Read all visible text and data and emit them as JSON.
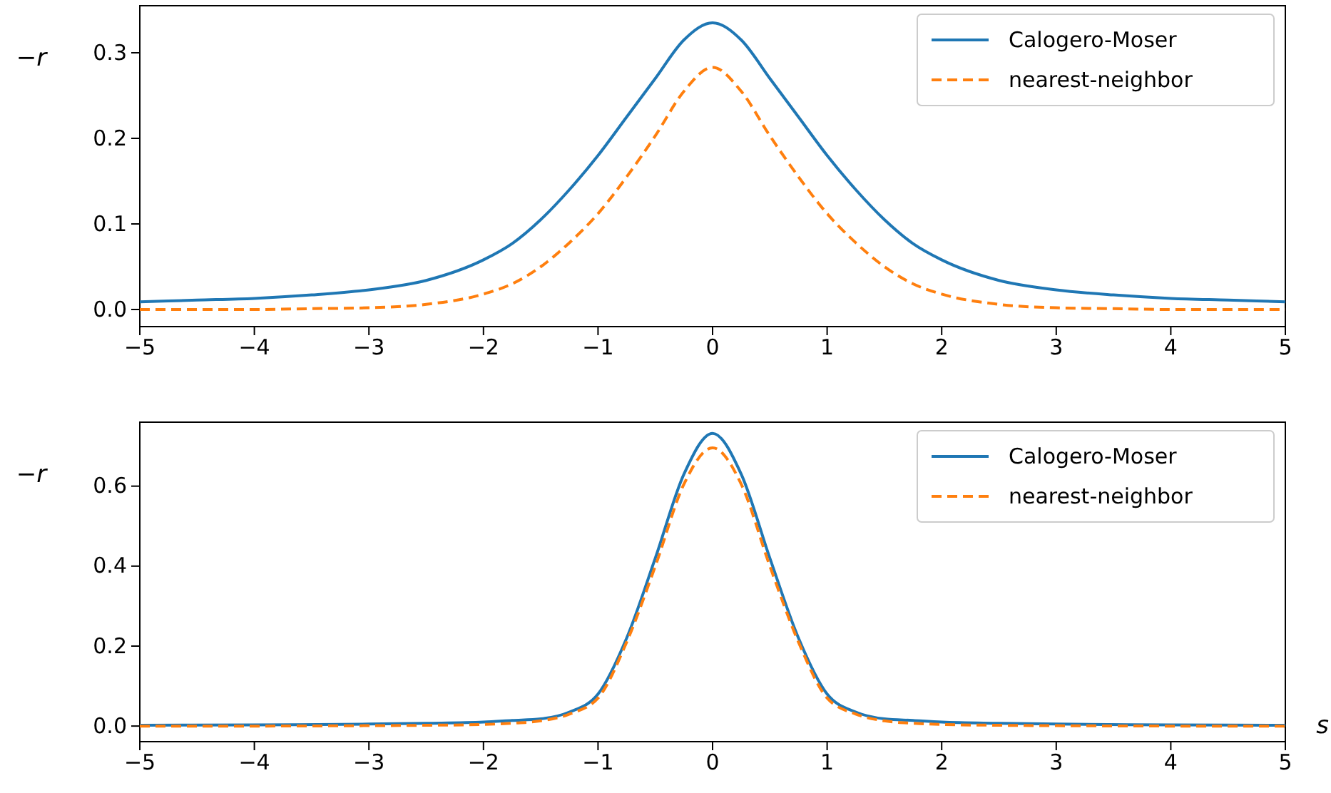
{
  "chart_data": [
    {
      "type": "line",
      "ylabel": "−r",
      "x": [
        -5,
        -4.5,
        -4,
        -3.5,
        -3,
        -2.5,
        -2,
        -1.75,
        -1.5,
        -1.25,
        -1,
        -0.75,
        -0.5,
        -0.25,
        0,
        0.25,
        0.5,
        0.75,
        1,
        1.25,
        1.5,
        1.75,
        2,
        2.5,
        3,
        3.5,
        4,
        4.5,
        5
      ],
      "series": [
        {
          "name": "Calogero-Moser",
          "color": "#1f77b4",
          "line_style": "solid",
          "values": [
            0.009,
            0.011,
            0.013,
            0.017,
            0.023,
            0.034,
            0.058,
            0.077,
            0.105,
            0.14,
            0.18,
            0.225,
            0.27,
            0.315,
            0.335,
            0.315,
            0.27,
            0.225,
            0.18,
            0.14,
            0.105,
            0.077,
            0.058,
            0.034,
            0.023,
            0.017,
            0.013,
            0.011,
            0.009
          ]
        },
        {
          "name": "nearest-neighbor",
          "color": "#ff7f0e",
          "line_style": "dashed",
          "values": [
            0,
            0,
            0,
            0.001,
            0.002,
            0.006,
            0.018,
            0.03,
            0.05,
            0.078,
            0.112,
            0.155,
            0.203,
            0.255,
            0.283,
            0.255,
            0.203,
            0.155,
            0.112,
            0.078,
            0.05,
            0.03,
            0.018,
            0.006,
            0.002,
            0.001,
            0,
            0,
            0
          ]
        }
      ],
      "xlim": [
        -5,
        5
      ],
      "xticks": [
        -5,
        -4,
        -3,
        -2,
        -1,
        0,
        1,
        2,
        3,
        4,
        5
      ],
      "ylim": [
        -0.02,
        0.355
      ],
      "yticks": [
        {
          "value": 0,
          "label": "0.0"
        },
        0.1,
        0.2,
        0.3
      ],
      "legend": "top right",
      "grid": false
    },
    {
      "type": "line",
      "ylabel": "−r",
      "xlabel": "s",
      "x": [
        -5,
        -4,
        -3,
        -2.5,
        -2,
        -1.75,
        -1.5,
        -1.25,
        -1,
        -0.75,
        -0.5,
        -0.25,
        0,
        0.25,
        0.5,
        0.75,
        1,
        1.25,
        1.5,
        1.75,
        2,
        2.5,
        3,
        4,
        5
      ],
      "series": [
        {
          "name": "Calogero-Moser",
          "color": "#1f77b4",
          "line_style": "solid",
          "values": [
            0.002,
            0.003,
            0.005,
            0.007,
            0.01,
            0.014,
            0.018,
            0.035,
            0.08,
            0.22,
            0.42,
            0.63,
            0.732,
            0.63,
            0.42,
            0.22,
            0.08,
            0.035,
            0.018,
            0.014,
            0.01,
            0.007,
            0.005,
            0.003,
            0.002
          ]
        },
        {
          "name": "nearest-neighbor",
          "color": "#ff7f0e",
          "line_style": "dashed",
          "values": [
            0,
            0,
            0.001,
            0.002,
            0.004,
            0.007,
            0.013,
            0.03,
            0.07,
            0.21,
            0.4,
            0.605,
            0.696,
            0.605,
            0.4,
            0.21,
            0.07,
            0.03,
            0.013,
            0.007,
            0.004,
            0.002,
            0.001,
            0,
            0
          ]
        }
      ],
      "xlim": [
        -5,
        5
      ],
      "xticks": [
        -5,
        -4,
        -3,
        -2,
        -1,
        0,
        1,
        2,
        3,
        4,
        5
      ],
      "ylim": [
        -0.039,
        0.76
      ],
      "yticks": [
        {
          "value": 0,
          "label": "0.0"
        },
        0.2,
        0.4,
        0.6
      ],
      "legend": "top right",
      "grid": false
    }
  ]
}
